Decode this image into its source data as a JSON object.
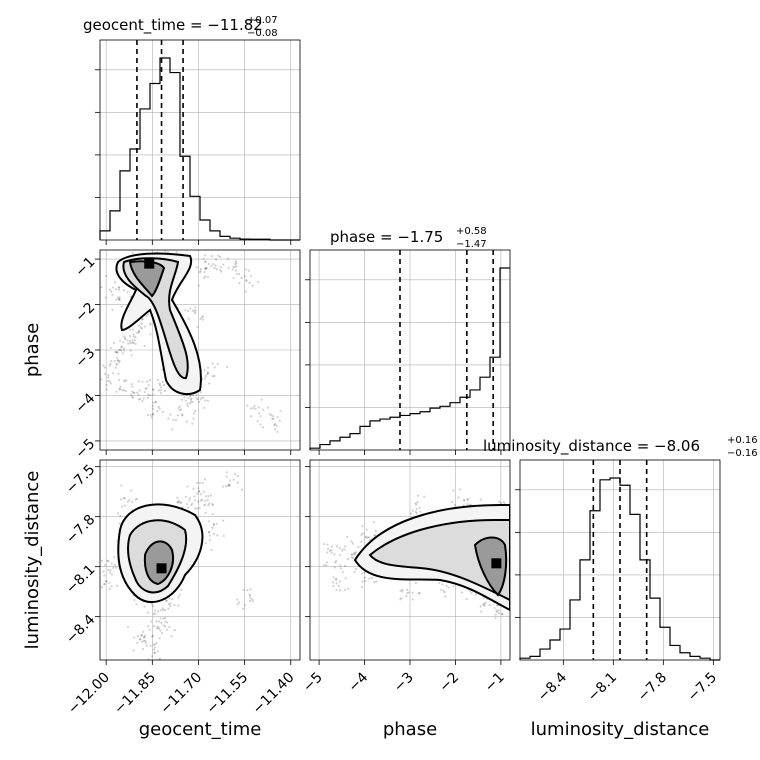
{
  "chart_data": {
    "type": "corner",
    "parameters": [
      {
        "key": "geocent_time",
        "label": "geocent_time",
        "title_main": "geocent_time = −11.82",
        "title_plus": "+0.07",
        "title_minus": "−0.08",
        "range": [
          -12.02,
          -11.37
        ],
        "ticks": [
          -12.0,
          -11.85,
          -11.7,
          -11.55,
          -11.4
        ],
        "tick_labels": [
          "−12.00",
          "−11.85",
          "−11.70",
          "−11.55",
          "−11.40"
        ],
        "quantiles": [
          -11.9,
          -11.82,
          -11.75
        ],
        "hist_edges_start": -12.02,
        "hist_bin_width": 0.0325,
        "hist_counts": [
          0.05,
          0.16,
          0.38,
          0.5,
          0.72,
          0.86,
          1.0,
          0.92,
          0.46,
          0.24,
          0.11,
          0.05,
          0.02,
          0.01,
          0.005,
          0.004,
          0.004,
          0.0,
          0.0,
          0.0
        ]
      },
      {
        "key": "phase",
        "label": "phase",
        "title_main": "phase = −1.75",
        "title_plus": "+0.58",
        "title_minus": "−1.47",
        "range": [
          -5.2,
          -0.8
        ],
        "ticks": [
          -5,
          -4,
          -3,
          -2,
          -1
        ],
        "tick_labels": [
          "−5",
          "−4",
          "−3",
          "−2",
          "−1"
        ],
        "quantiles": [
          -3.22,
          -1.75,
          -1.17
        ],
        "hist_edges_start": -5.2,
        "hist_bin_width": 0.22,
        "hist_counts": [
          0.01,
          0.03,
          0.05,
          0.07,
          0.09,
          0.13,
          0.16,
          0.17,
          0.18,
          0.19,
          0.2,
          0.21,
          0.23,
          0.24,
          0.26,
          0.29,
          0.33,
          0.4,
          0.51,
          1.0
        ]
      },
      {
        "key": "luminosity_distance",
        "label": "luminosity_distance",
        "title_main": "luminosity_distance = −8.06",
        "title_plus": "+0.16",
        "title_minus": "−0.16",
        "range": [
          -8.66,
          -7.46
        ],
        "ticks": [
          -8.4,
          -8.1,
          -7.8,
          -7.5
        ],
        "tick_labels": [
          "−8.4",
          "−8.1",
          "−7.8",
          "−7.5"
        ],
        "quantiles": [
          -8.22,
          -8.06,
          -7.9
        ],
        "hist_edges_start": -8.66,
        "hist_bin_width": 0.06,
        "hist_counts": [
          0.01,
          0.02,
          0.06,
          0.11,
          0.17,
          0.33,
          0.55,
          0.82,
          0.99,
          1.0,
          0.96,
          0.8,
          0.55,
          0.34,
          0.18,
          0.08,
          0.04,
          0.02,
          0.01,
          0.0
        ]
      }
    ],
    "pairs": [
      {
        "x": "geocent_time",
        "y": "phase",
        "points": [
          [
            -11.88,
            -1.1
          ],
          [
            -11.87,
            -1.2
          ],
          [
            -11.85,
            -1.15
          ],
          [
            -11.83,
            -1.3
          ],
          [
            -11.82,
            -1.05
          ],
          [
            -11.8,
            -1.2
          ],
          [
            -11.78,
            -1.1
          ],
          [
            -11.9,
            -1.25
          ],
          [
            -11.92,
            -1.1
          ],
          [
            -11.86,
            -1.4
          ],
          [
            -11.84,
            -1.6
          ],
          [
            -11.83,
            -1.8
          ],
          [
            -11.85,
            -2.0
          ],
          [
            -11.87,
            -2.2
          ],
          [
            -11.89,
            -2.4
          ],
          [
            -11.91,
            -2.6
          ],
          [
            -11.93,
            -2.8
          ],
          [
            -11.95,
            -3.0
          ],
          [
            -11.8,
            -2.1
          ],
          [
            -11.79,
            -2.4
          ],
          [
            -11.77,
            -2.7
          ],
          [
            -11.76,
            -3.0
          ],
          [
            -11.75,
            -3.3
          ],
          [
            -11.74,
            -3.6
          ],
          [
            -11.73,
            -3.9
          ],
          [
            -11.78,
            -3.8
          ],
          [
            -11.82,
            -3.7
          ],
          [
            -11.86,
            -3.9
          ],
          [
            -11.9,
            -4.0
          ],
          [
            -11.95,
            -3.8
          ],
          [
            -12.0,
            -3.6
          ],
          [
            -11.72,
            -4.2
          ],
          [
            -11.7,
            -4.0
          ],
          [
            -11.68,
            -1.3
          ],
          [
            -11.65,
            -1.1
          ],
          [
            -11.6,
            -1.2
          ],
          [
            -11.55,
            -1.4
          ],
          [
            -11.98,
            -3.3
          ],
          [
            -11.84,
            -4.3
          ],
          [
            -11.76,
            -4.4
          ],
          [
            -11.5,
            -4.3
          ],
          [
            -11.45,
            -4.6
          ],
          [
            -11.66,
            -3.5
          ],
          [
            -11.71,
            -2.2
          ],
          [
            -11.94,
            -2.0
          ],
          [
            -11.97,
            -1.6
          ]
        ],
        "density_peak": [
          -11.86,
          -1.1
        ],
        "contour_levels": 3
      },
      {
        "x": "geocent_time",
        "y": "luminosity_distance",
        "points": [
          [
            -11.88,
            -8.0
          ],
          [
            -11.85,
            -8.1
          ],
          [
            -11.82,
            -8.15
          ],
          [
            -11.8,
            -8.05
          ],
          [
            -11.78,
            -7.95
          ],
          [
            -11.83,
            -7.9
          ],
          [
            -11.9,
            -8.2
          ],
          [
            -11.87,
            -8.3
          ],
          [
            -11.84,
            -8.4
          ],
          [
            -11.86,
            -8.5
          ],
          [
            -11.83,
            -8.6
          ],
          [
            -11.92,
            -7.85
          ],
          [
            -11.95,
            -8.0
          ],
          [
            -11.97,
            -8.1
          ],
          [
            -11.76,
            -7.75
          ],
          [
            -11.74,
            -7.8
          ],
          [
            -11.72,
            -7.7
          ],
          [
            -11.7,
            -7.65
          ],
          [
            -11.68,
            -7.75
          ],
          [
            -11.79,
            -8.3
          ],
          [
            -11.81,
            -8.45
          ],
          [
            -11.89,
            -8.55
          ],
          [
            -11.99,
            -8.2
          ],
          [
            -11.65,
            -7.9
          ],
          [
            -11.6,
            -7.6
          ],
          [
            -11.55,
            -8.3
          ],
          [
            -11.93,
            -7.7
          ]
        ],
        "density_peak": [
          -11.82,
          -8.11
        ],
        "contour_levels": 3
      },
      {
        "x": "phase",
        "y": "luminosity_distance",
        "points": [
          [
            -4.5,
            -8.05
          ],
          [
            -4.2,
            -8.0
          ],
          [
            -3.8,
            -8.1
          ],
          [
            -3.5,
            -8.0
          ],
          [
            -3.2,
            -7.95
          ],
          [
            -2.9,
            -8.05
          ],
          [
            -2.6,
            -7.9
          ],
          [
            -2.3,
            -8.0
          ],
          [
            -2.0,
            -7.85
          ],
          [
            -1.7,
            -7.9
          ],
          [
            -1.4,
            -7.8
          ],
          [
            -1.2,
            -8.0
          ],
          [
            -1.1,
            -8.1
          ],
          [
            -1.15,
            -8.2
          ],
          [
            -1.3,
            -8.3
          ],
          [
            -1.6,
            -8.25
          ],
          [
            -2.2,
            -8.2
          ],
          [
            -3.0,
            -8.25
          ],
          [
            -4.0,
            -8.15
          ],
          [
            -4.8,
            -8.0
          ],
          [
            -1.8,
            -7.7
          ],
          [
            -1.0,
            -7.75
          ],
          [
            -1.05,
            -8.35
          ],
          [
            -2.8,
            -7.75
          ],
          [
            -3.9,
            -7.9
          ],
          [
            -4.6,
            -8.2
          ]
        ],
        "density_peak": [
          -1.1,
          -8.08
        ],
        "contour_levels": 3
      }
    ]
  }
}
